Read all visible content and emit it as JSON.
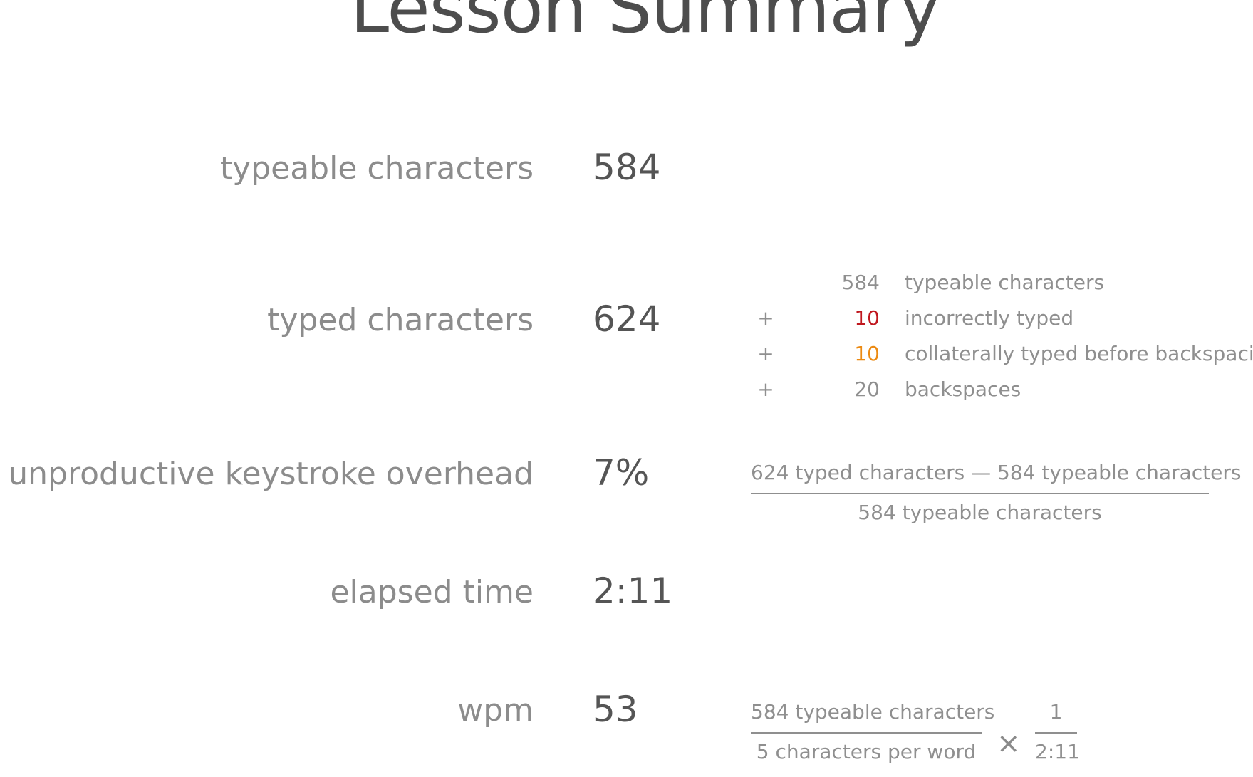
{
  "title": "Lesson Summary",
  "stats": [
    {
      "label": "typeable characters",
      "value": "584"
    },
    {
      "label": "typed characters",
      "value": "624"
    },
    {
      "label": "unproductive keystroke overhead",
      "value": "7%"
    },
    {
      "label": "elapsed time",
      "value": "2:11"
    },
    {
      "label": "wpm",
      "value": "53"
    }
  ],
  "typed_breakdown": [
    {
      "op": "",
      "num": "584",
      "desc": "typeable characters",
      "color": "#8f8f8f"
    },
    {
      "op": "+",
      "num": "10",
      "desc": "incorrectly typed",
      "color": "#c0181f"
    },
    {
      "op": "+",
      "num": "10",
      "desc": "collaterally typed before backspacing",
      "color": "#ec8a12"
    },
    {
      "op": "+",
      "num": "20",
      "desc": "backspaces",
      "color": "#8f8f8f"
    }
  ],
  "overhead_formula": {
    "numerator": "624 typed characters — 584 typeable characters",
    "denominator": "584 typeable characters"
  },
  "wpm_formula": {
    "left_numerator": "584 typeable characters",
    "left_denominator": "5 characters per word",
    "operator": "×",
    "right_numerator": "1",
    "right_denominator": "2:11"
  }
}
